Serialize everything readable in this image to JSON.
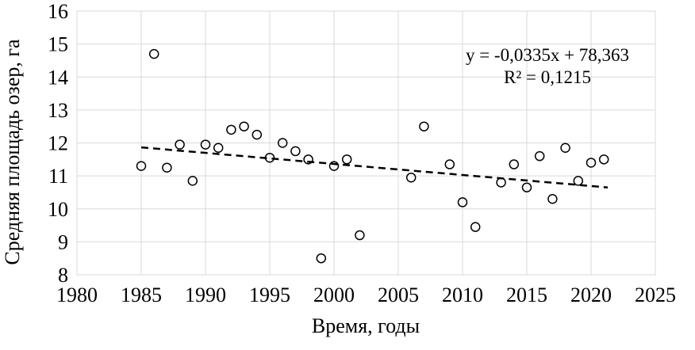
{
  "chart_data": {
    "type": "scatter",
    "title": "",
    "xlabel": "Время, годы",
    "ylabel": "Средняя площадь озер, га",
    "xlim": [
      1980,
      2025
    ],
    "ylim": [
      8,
      16
    ],
    "x_ticks": [
      1980,
      1985,
      1990,
      1995,
      2000,
      2005,
      2010,
      2015,
      2020,
      2025
    ],
    "y_ticks": [
      8,
      9,
      10,
      11,
      12,
      13,
      14,
      15,
      16
    ],
    "grid": true,
    "legend": "none",
    "marker_style": "open-circle",
    "points": [
      {
        "x": 1985,
        "y": 11.3
      },
      {
        "x": 1986,
        "y": 14.7
      },
      {
        "x": 1987,
        "y": 11.25
      },
      {
        "x": 1988,
        "y": 11.95
      },
      {
        "x": 1989,
        "y": 10.85
      },
      {
        "x": 1990,
        "y": 11.95
      },
      {
        "x": 1991,
        "y": 11.85
      },
      {
        "x": 1992,
        "y": 12.4
      },
      {
        "x": 1993,
        "y": 12.5
      },
      {
        "x": 1994,
        "y": 12.25
      },
      {
        "x": 1995,
        "y": 11.55
      },
      {
        "x": 1996,
        "y": 12.0
      },
      {
        "x": 1997,
        "y": 11.75
      },
      {
        "x": 1998,
        "y": 11.5
      },
      {
        "x": 1999,
        "y": 8.5
      },
      {
        "x": 2000,
        "y": 11.3
      },
      {
        "x": 2001,
        "y": 11.5
      },
      {
        "x": 2002,
        "y": 9.2
      },
      {
        "x": 2006,
        "y": 10.95
      },
      {
        "x": 2007,
        "y": 12.5
      },
      {
        "x": 2009,
        "y": 11.35
      },
      {
        "x": 2010,
        "y": 10.2
      },
      {
        "x": 2011,
        "y": 9.45
      },
      {
        "x": 2013,
        "y": 10.8
      },
      {
        "x": 2014,
        "y": 11.35
      },
      {
        "x": 2015,
        "y": 10.65
      },
      {
        "x": 2016,
        "y": 11.6
      },
      {
        "x": 2017,
        "y": 10.3
      },
      {
        "x": 2018,
        "y": 11.85
      },
      {
        "x": 2019,
        "y": 10.85
      },
      {
        "x": 2020,
        "y": 11.4
      },
      {
        "x": 2021,
        "y": 11.5
      }
    ],
    "trendline": {
      "style": "dashed",
      "slope": -0.0335,
      "intercept": 78.363,
      "x_start": 1985,
      "x_end": 2021.3,
      "equation_label": "y = -0,0335x + 78,363",
      "r2_label": "R² = 0,1215"
    }
  },
  "colors": {
    "background": "#ffffff",
    "gridline": "#d9d9d9",
    "text": "#000000",
    "marker": "#000000",
    "trendline": "#000000"
  }
}
